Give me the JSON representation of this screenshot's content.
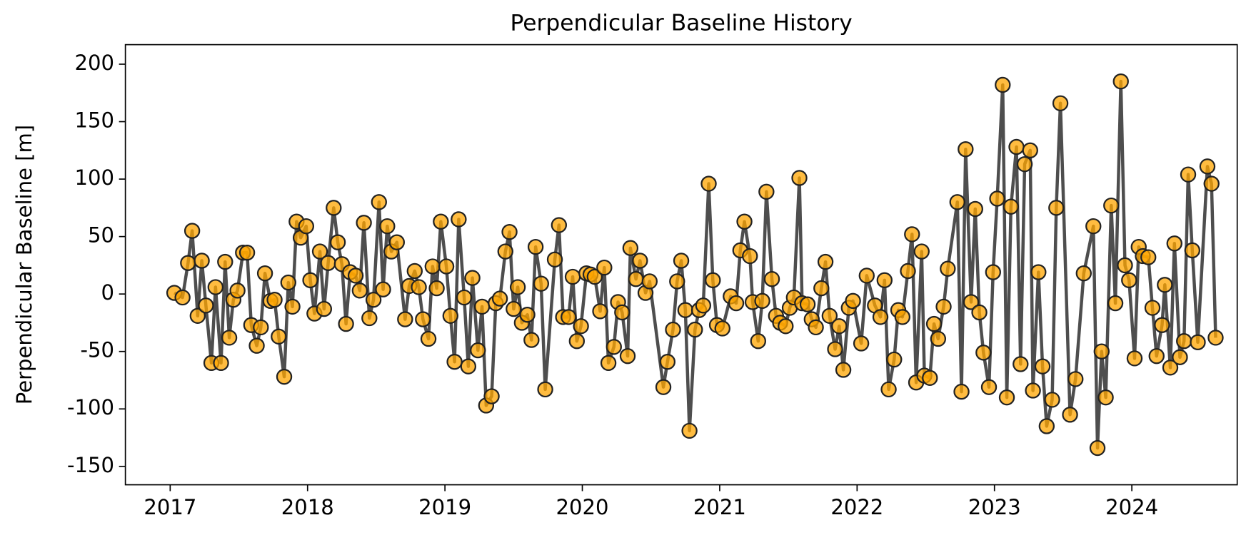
{
  "chart_data": {
    "type": "line",
    "title": "Perpendicular Baseline History",
    "ylabel": "Perpendicular Baseline [m]",
    "xlim": [
      2016.674,
      2024.767
    ],
    "xticks": [
      2017,
      2018,
      2019,
      2020,
      2021,
      2022,
      2023,
      2024
    ],
    "ylim": [
      -166,
      217
    ],
    "yticks": [
      -150,
      -100,
      -50,
      0,
      50,
      100,
      150,
      200
    ],
    "grid": false,
    "x": [
      2017.03,
      2017.09,
      2017.13,
      2017.16,
      2017.2,
      2017.23,
      2017.26,
      2017.3,
      2017.33,
      2017.37,
      2017.4,
      2017.43,
      2017.46,
      2017.49,
      2017.53,
      2017.56,
      2017.59,
      2017.63,
      2017.66,
      2017.69,
      2017.73,
      2017.76,
      2017.79,
      2017.83,
      2017.86,
      2017.89,
      2017.92,
      2017.95,
      2017.99,
      2018.02,
      2018.05,
      2018.09,
      2018.12,
      2018.15,
      2018.19,
      2018.22,
      2018.25,
      2018.28,
      2018.31,
      2018.35,
      2018.38,
      2018.41,
      2018.45,
      2018.48,
      2018.52,
      2018.55,
      2018.58,
      2018.61,
      2018.65,
      2018.71,
      2018.74,
      2018.78,
      2018.81,
      2018.84,
      2018.88,
      2018.91,
      2018.94,
      2018.97,
      2019.01,
      2019.04,
      2019.07,
      2019.1,
      2019.14,
      2019.17,
      2019.2,
      2019.24,
      2019.27,
      2019.3,
      2019.34,
      2019.37,
      2019.4,
      2019.44,
      2019.47,
      2019.5,
      2019.53,
      2019.56,
      2019.6,
      2019.63,
      2019.66,
      2019.7,
      2019.73,
      2019.8,
      2019.83,
      2019.86,
      2019.9,
      2019.93,
      2019.96,
      2019.99,
      2020.03,
      2020.06,
      2020.09,
      2020.13,
      2020.16,
      2020.19,
      2020.23,
      2020.26,
      2020.29,
      2020.33,
      2020.35,
      2020.39,
      2020.42,
      2020.46,
      2020.49,
      2020.59,
      2020.62,
      2020.66,
      2020.69,
      2020.72,
      2020.75,
      2020.78,
      2020.82,
      2020.85,
      2020.88,
      2020.92,
      2020.95,
      2020.98,
      2021.02,
      2021.08,
      2021.12,
      2021.15,
      2021.18,
      2021.22,
      2021.24,
      2021.28,
      2021.31,
      2021.34,
      2021.38,
      2021.41,
      2021.44,
      2021.48,
      2021.51,
      2021.54,
      2021.58,
      2021.6,
      2021.64,
      2021.67,
      2021.7,
      2021.74,
      2021.77,
      2021.8,
      2021.84,
      2021.87,
      2021.9,
      2021.94,
      2021.97,
      2022.03,
      2022.07,
      2022.13,
      2022.17,
      2022.2,
      2022.23,
      2022.27,
      2022.3,
      2022.33,
      2022.37,
      2022.4,
      2022.43,
      2022.47,
      2022.49,
      2022.53,
      2022.56,
      2022.59,
      2022.63,
      2022.66,
      2022.73,
      2022.76,
      2022.79,
      2022.83,
      2022.86,
      2022.89,
      2022.92,
      2022.96,
      2022.99,
      2023.02,
      2023.06,
      2023.09,
      2023.12,
      2023.16,
      2023.19,
      2023.22,
      2023.26,
      2023.28,
      2023.32,
      2023.35,
      2023.38,
      2023.42,
      2023.45,
      2023.48,
      2023.55,
      2023.59,
      2023.65,
      2023.72,
      2023.75,
      2023.78,
      2023.81,
      2023.85,
      2023.88,
      2023.92,
      2023.95,
      2023.98,
      2024.02,
      2024.05,
      2024.08,
      2024.12,
      2024.15,
      2024.18,
      2024.22,
      2024.24,
      2024.28,
      2024.31,
      2024.35,
      2024.38,
      2024.41,
      2024.44,
      2024.48,
      2024.55,
      2024.58,
      2024.61
    ],
    "series": [
      {
        "color": "#ffa500",
        "line_color": "#444444",
        "values": [
          1,
          -3,
          27,
          55,
          -19,
          29,
          -10,
          -60,
          6,
          -60,
          28,
          -38,
          -5,
          3,
          36,
          36,
          -27,
          -45,
          -29,
          18,
          -6,
          -5,
          -37,
          -72,
          10,
          -11,
          63,
          49,
          59,
          12,
          -17,
          37,
          -13,
          27,
          75,
          45,
          26,
          -26,
          19,
          16,
          3,
          62,
          -21,
          -5,
          80,
          4,
          59,
          37,
          45,
          -22,
          7,
          20,
          6,
          -22,
          -39,
          24,
          5,
          63,
          24,
          -19,
          -59,
          65,
          -3,
          -63,
          14,
          -49,
          -11,
          -97,
          -89,
          -8,
          -4,
          37,
          54,
          -13,
          6,
          -25,
          -18,
          -40,
          41,
          9,
          -83,
          30,
          60,
          -20,
          -20,
          15,
          -41,
          -28,
          18,
          17,
          15,
          -15,
          23,
          -60,
          -46,
          -7,
          -16,
          -54,
          40,
          13,
          29,
          1,
          11,
          -81,
          -59,
          -31,
          11,
          29,
          -14,
          -119,
          -31,
          -14,
          -10,
          96,
          12,
          -27,
          -30,
          -2,
          -8,
          38,
          63,
          33,
          -7,
          -41,
          -6,
          89,
          13,
          -19,
          -25,
          -28,
          -12,
          -3,
          101,
          -8,
          -9,
          -22,
          -29,
          5,
          28,
          -19,
          -48,
          -28,
          -66,
          -12,
          -6,
          -43,
          16,
          -10,
          -20,
          12,
          -83,
          -57,
          -14,
          -20,
          20,
          52,
          -77,
          37,
          -71,
          -73,
          -26,
          -39,
          -11,
          22,
          80,
          -85,
          126,
          -7,
          74,
          -16,
          -51,
          -81,
          19,
          83,
          182,
          -90,
          76,
          128,
          -61,
          113,
          125,
          -84,
          19,
          -63,
          -115,
          -92,
          75,
          166,
          -105,
          -74,
          18,
          59,
          -134,
          -50,
          -90,
          77,
          -8,
          185,
          25,
          12,
          -56,
          41,
          33,
          32,
          -12,
          -54,
          -27,
          8,
          -64,
          44,
          -55,
          -41,
          104,
          38,
          -42,
          111,
          96,
          -38
        ]
      }
    ]
  }
}
